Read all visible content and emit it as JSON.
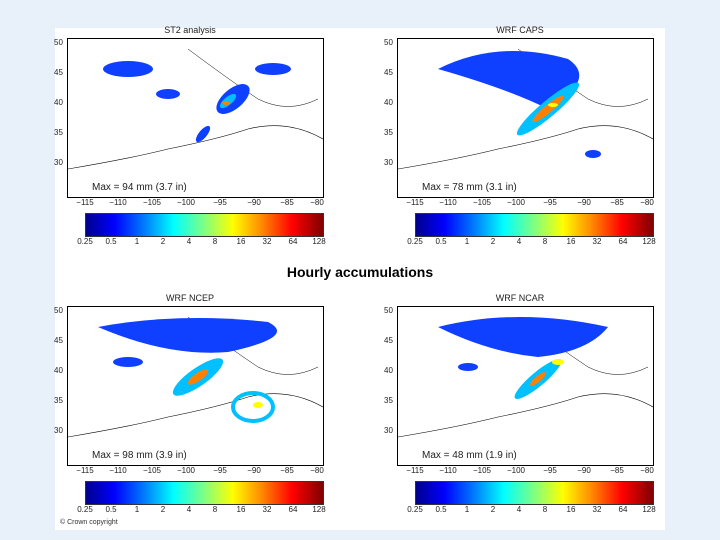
{
  "heading": "Hourly accumulations",
  "copyright": "© Crown copyright",
  "colorbar_labels_a": [
    "0.25",
    "0.5",
    "1",
    "2",
    "4",
    "8",
    "16",
    "32",
    "64",
    "128"
  ],
  "colorbar_labels_b": [
    "0.25",
    "0.5",
    "1",
    "2",
    "4",
    "8",
    "16",
    "32",
    "64",
    "128"
  ],
  "yticks": [
    "50",
    "45",
    "40",
    "35",
    "30"
  ],
  "panels": [
    {
      "title": "ST2 analysis",
      "max": "Max = 94 mm (3.7 in)",
      "xticks": [
        "−115",
        "−110",
        "−105",
        "−100",
        "−95",
        "−90",
        "−85",
        "−80"
      ]
    },
    {
      "title": "WRF CAPS",
      "max": "Max = 78 mm (3.1 in)",
      "xticks": [
        "−115",
        "−110",
        "−105",
        "−100",
        "−95",
        "−90",
        "−85",
        "−80"
      ]
    },
    {
      "title": "WRF NCEP",
      "max": "Max = 98 mm (3.9 in)",
      "xticks": [
        "−115",
        "−110",
        "−105",
        "−100",
        "−95",
        "−90",
        "−85",
        "−80"
      ]
    },
    {
      "title": "WRF NCAR",
      "max": "Max = 48 mm (1.9 in)",
      "xticks": [
        "−115",
        "−110",
        "−105",
        "−100",
        "−95",
        "−90",
        "−85",
        "−80"
      ]
    }
  ],
  "colors": {
    "heavy": "#ff8000",
    "moderate": "#00c0ff",
    "light": "#1040ff",
    "peak": "#ffff00"
  }
}
